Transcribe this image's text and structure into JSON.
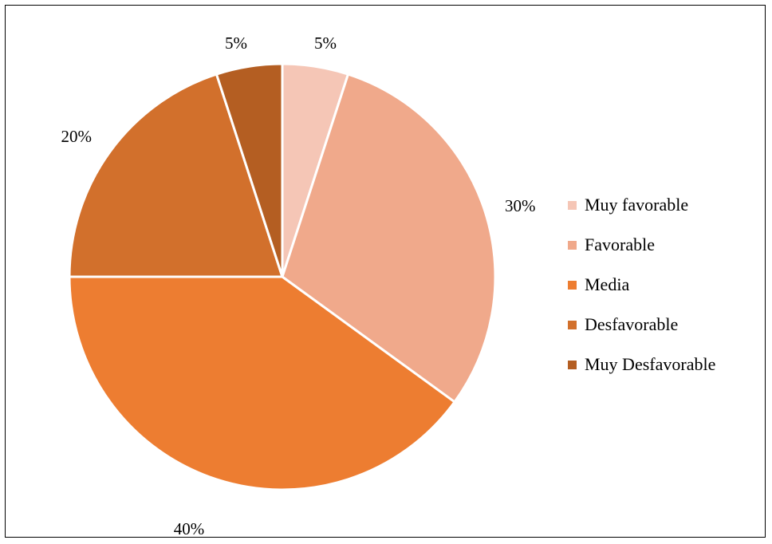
{
  "chart_data": {
    "type": "pie",
    "title": "",
    "categories": [
      "Muy favorable",
      "Favorable",
      "Media",
      "Desfavorable",
      "Muy Desfavorable"
    ],
    "values": [
      5,
      30,
      40,
      20,
      5
    ],
    "data_labels": [
      "5%",
      "30%",
      "40%",
      "20%",
      "5%"
    ],
    "colors": [
      "#F5C6B6",
      "#F0A98B",
      "#ED7D31",
      "#D2702C",
      "#B45E22"
    ],
    "start_angle_deg": 0,
    "direction": "clockwise",
    "legend_position": "right"
  }
}
